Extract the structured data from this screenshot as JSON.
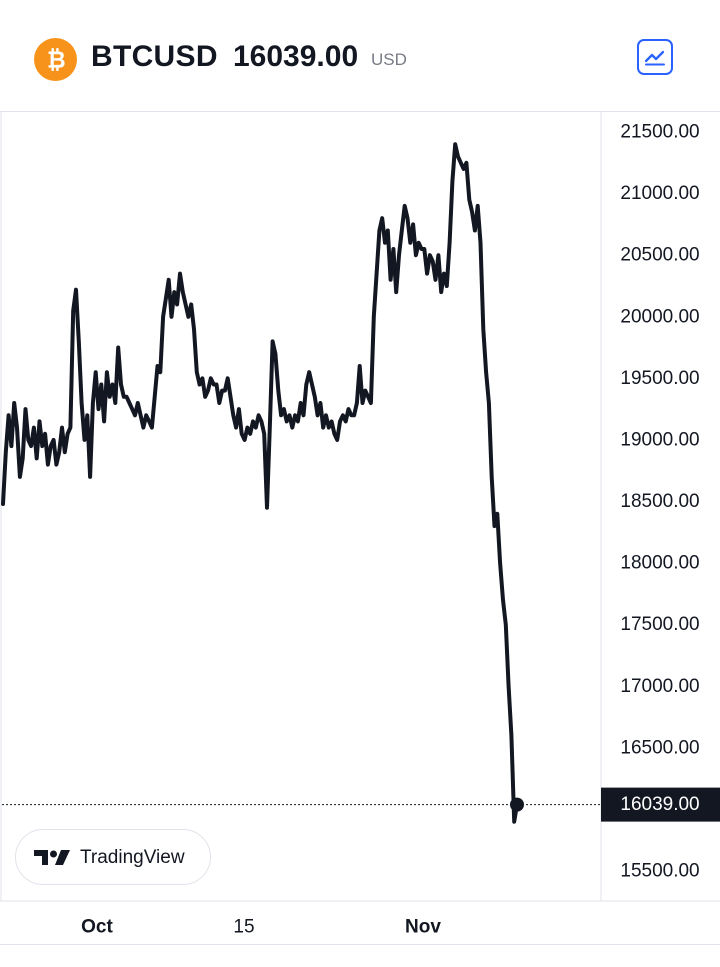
{
  "header": {
    "symbol": "BTCUSD",
    "price": "16039.00",
    "currency": "USD",
    "coin_icon": "bitcoin-icon",
    "chart_toggle_icon": "line-chart-icon",
    "accent_color": "#2962ff",
    "coin_color": "#f7931a"
  },
  "branding": {
    "label": "TradingView",
    "icon": "tradingview-logo-icon"
  },
  "chart_data": {
    "type": "line",
    "title": "",
    "xlabel": "",
    "ylabel": "",
    "ylim": [
      15420,
      21900
    ],
    "y_ticks": [
      "21500.00",
      "21000.00",
      "20500.00",
      "20000.00",
      "19500.00",
      "19000.00",
      "18500.00",
      "18000.00",
      "17500.00",
      "17000.00",
      "16500.00",
      "15500.00"
    ],
    "x_ticks": [
      "Oct",
      "15",
      "Nov"
    ],
    "last_value": 16039.0,
    "last_value_label": "16039.00",
    "line_color": "#131722",
    "grid": false,
    "series": [
      {
        "values": [
          18480,
          18900,
          19200,
          18950,
          19300,
          19100,
          18700,
          18850,
          19250,
          19000,
          18950,
          19100,
          18850,
          19150,
          18950,
          19050,
          18800,
          18950,
          19000,
          18800,
          18900,
          19100,
          18900,
          19050,
          19100,
          20050,
          20220,
          19800,
          19300,
          19000,
          19200,
          18700,
          19300,
          19550,
          19250,
          19450,
          19150,
          19550,
          19350,
          19450,
          19300,
          19750,
          19450,
          19350,
          19350,
          19300,
          19250,
          19200,
          19300,
          19200,
          19100,
          19200,
          19150,
          19100,
          19350,
          19600,
          19550,
          20000,
          20150,
          20300,
          20000,
          20200,
          20100,
          20350,
          20200,
          20100,
          20000,
          20100,
          19900,
          19550,
          19450,
          19500,
          19350,
          19400,
          19500,
          19450,
          19450,
          19300,
          19400,
          19400,
          19500,
          19350,
          19200,
          19100,
          19250,
          19050,
          19000,
          19100,
          19050,
          19150,
          19100,
          19200,
          19150,
          19050,
          18450,
          19100,
          19800,
          19700,
          19400,
          19200,
          19250,
          19150,
          19200,
          19100,
          19200,
          19150,
          19300,
          19200,
          19450,
          19550,
          19450,
          19350,
          19200,
          19300,
          19100,
          19200,
          19100,
          19150,
          19050,
          19000,
          19150,
          19200,
          19150,
          19250,
          19200,
          19200,
          19300,
          19600,
          19300,
          19400,
          19350,
          19300,
          20000,
          20350,
          20700,
          20800,
          20600,
          20700,
          20300,
          20550,
          20200,
          20500,
          20700,
          20900,
          20800,
          20600,
          20750,
          20500,
          20600,
          20550,
          20550,
          20350,
          20500,
          20450,
          20300,
          20500,
          20200,
          20350,
          20250,
          20600,
          21100,
          21400,
          21300,
          21250,
          21200,
          21250,
          20950,
          20850,
          20700,
          20900,
          20600,
          19900,
          19550,
          19300,
          18700,
          18300,
          18400,
          18000,
          17700,
          17500,
          17000,
          16600,
          15900,
          16039
        ]
      }
    ]
  }
}
